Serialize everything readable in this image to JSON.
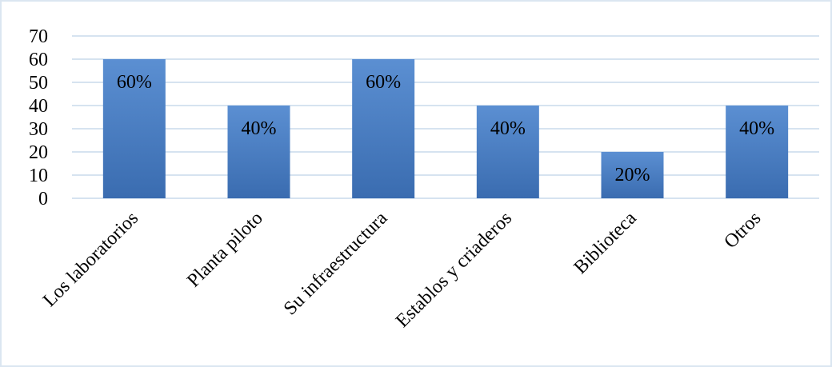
{
  "chart_data": {
    "type": "bar",
    "categories": [
      "Los laboratorios",
      "Planta piloto",
      "Su infraestructura",
      "Establos y criaderos",
      "Biblioteca",
      "Otros"
    ],
    "values": [
      60,
      40,
      60,
      40,
      20,
      40
    ],
    "data_labels": [
      "60%",
      "40%",
      "60%",
      "40%",
      "20%",
      "40%"
    ],
    "ylim": [
      0,
      70
    ],
    "yticks": [
      0,
      10,
      20,
      30,
      40,
      50,
      60,
      70
    ],
    "grid": true,
    "bar_color_top": "#5b8fd2",
    "bar_color_bottom": "#3a6cb0",
    "grid_color": "#c9daec",
    "frame_color": "#dbe6f1"
  }
}
